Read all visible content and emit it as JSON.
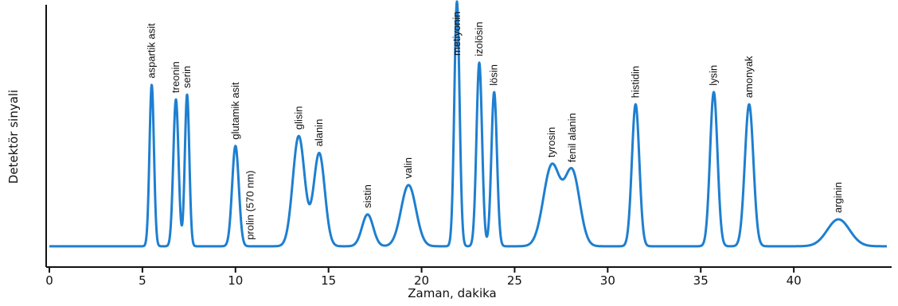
{
  "chart_data": {
    "type": "line",
    "xlabel": "Zaman, dakika",
    "ylabel": "Detektör sinyali",
    "xlim": [
      0,
      45
    ],
    "ylim": [
      0,
      100
    ],
    "xticks": [
      0,
      5,
      10,
      15,
      20,
      25,
      30,
      35,
      40
    ],
    "baseline": 2,
    "color": "#1e7fd0",
    "peaks": [
      {
        "name": "aspartik asit",
        "x": 5.5,
        "height": 66,
        "width": 0.12
      },
      {
        "name": "treonin",
        "x": 6.8,
        "height": 60,
        "width": 0.14
      },
      {
        "name": "serin",
        "x": 7.4,
        "height": 62,
        "width": 0.12
      },
      {
        "name": "glutamik asit",
        "x": 10.0,
        "height": 41,
        "width": 0.18
      },
      {
        "name": "prolin (570 nm)",
        "x": 10.8,
        "height": 0,
        "width": 0.3
      },
      {
        "name": "glisin",
        "x": 13.4,
        "height": 45,
        "width": 0.32
      },
      {
        "name": "alanin",
        "x": 14.5,
        "height": 38,
        "width": 0.3
      },
      {
        "name": "sistin",
        "x": 17.1,
        "height": 13,
        "width": 0.3
      },
      {
        "name": "valin",
        "x": 19.3,
        "height": 25,
        "width": 0.4
      },
      {
        "name": "metiyonin",
        "x": 21.9,
        "height": 100,
        "width": 0.14
      },
      {
        "name": "izolösin",
        "x": 23.1,
        "height": 75,
        "width": 0.15
      },
      {
        "name": "lösin",
        "x": 23.9,
        "height": 63,
        "width": 0.15
      },
      {
        "name": "tyrosin",
        "x": 27.0,
        "height": 33,
        "width": 0.45
      },
      {
        "name": "fenil alanin",
        "x": 28.1,
        "height": 30,
        "width": 0.4
      },
      {
        "name": "histidin",
        "x": 31.5,
        "height": 58,
        "width": 0.2
      },
      {
        "name": "lysin",
        "x": 35.7,
        "height": 63,
        "width": 0.2
      },
      {
        "name": "amonyak",
        "x": 37.6,
        "height": 58,
        "width": 0.23
      },
      {
        "name": "arginin",
        "x": 42.4,
        "height": 11,
        "width": 0.6
      }
    ]
  }
}
